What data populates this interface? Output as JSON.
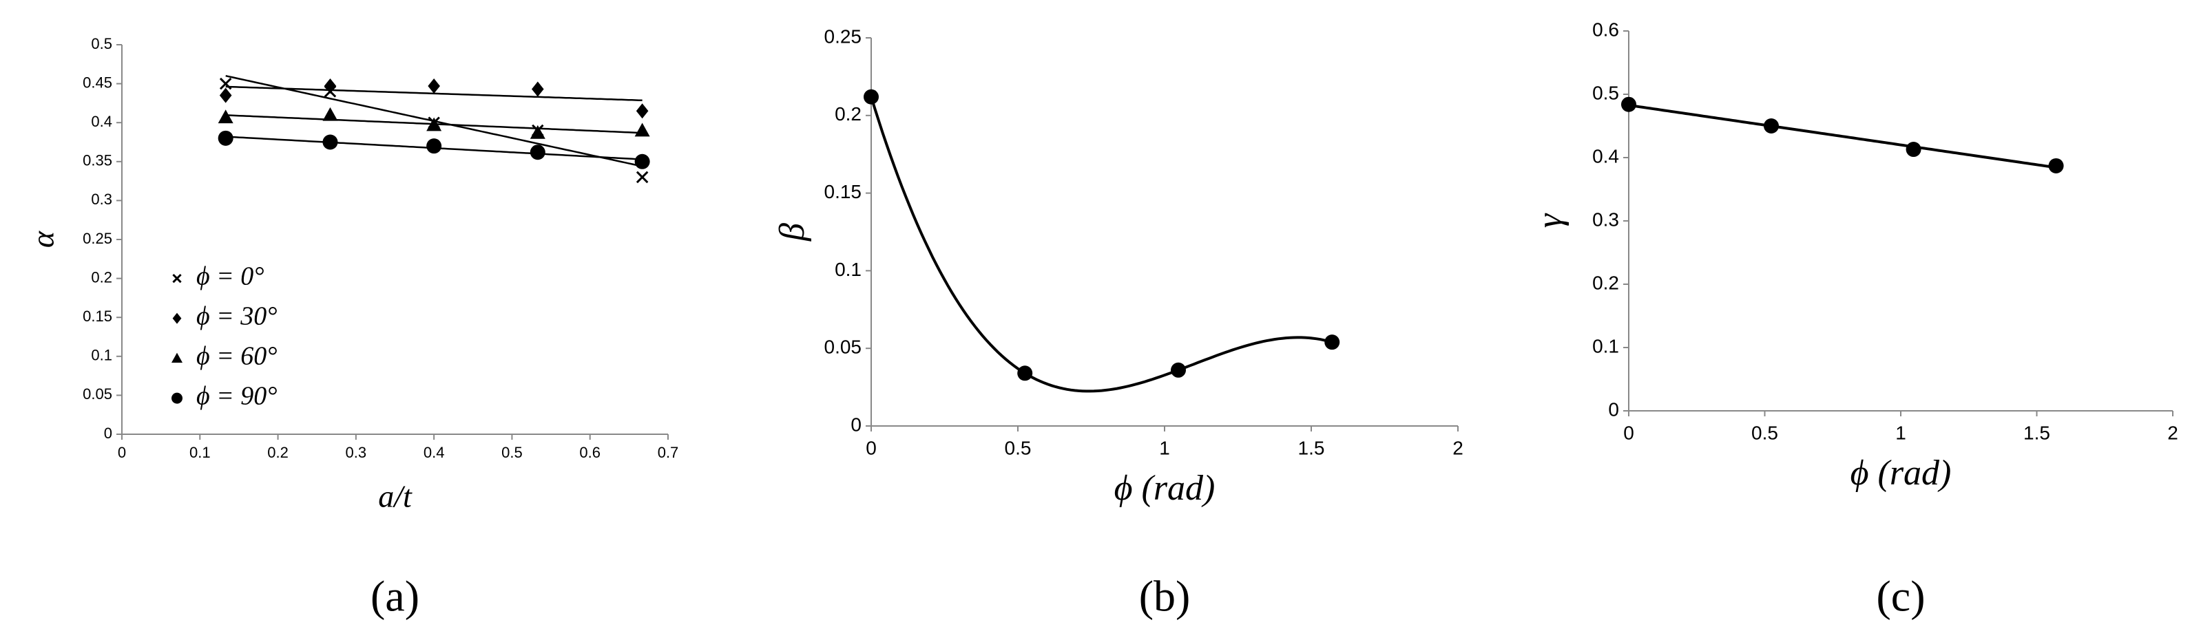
{
  "chart_data": [
    {
      "type": "scatter",
      "panel_label": "(a)",
      "x_label": "a/t",
      "y_label": "α",
      "x": [
        0.133,
        0.267,
        0.4,
        0.533,
        0.667
      ],
      "series": [
        {
          "name": "ϕ = 0°",
          "color": "#000000",
          "marker": "x",
          "values": [
            0.45,
            0.44,
            0.4,
            0.39,
            0.33
          ]
        },
        {
          "name": "ϕ = 30°",
          "color": "#000000",
          "marker": "diamond",
          "values": [
            0.435,
            0.447,
            0.447,
            0.443,
            0.415
          ]
        },
        {
          "name": "ϕ = 60°",
          "color": "#000000",
          "marker": "triangle",
          "values": [
            0.407,
            0.41,
            0.397,
            0.387,
            0.39
          ]
        },
        {
          "name": "ϕ = 90°",
          "color": "#000000",
          "marker": "circle",
          "values": [
            0.38,
            0.375,
            0.37,
            0.362,
            0.35
          ]
        }
      ],
      "trendline": "linear",
      "legend": "center left",
      "xlim": [
        0,
        0.7
      ],
      "xticks": [
        0,
        0.1,
        0.2,
        0.3,
        0.4,
        0.5,
        0.6,
        0.7
      ],
      "ylim": [
        0,
        0.5
      ],
      "yticks": [
        0,
        0.05,
        0.1,
        0.15,
        0.2,
        0.25,
        0.3,
        0.35,
        0.4,
        0.45,
        0.5
      ]
    },
    {
      "type": "scatter",
      "panel_label": "(b)",
      "x_label": "ϕ (rad)",
      "y_label": "β",
      "x": [
        0,
        0.524,
        1.047,
        1.571
      ],
      "series": [
        {
          "color": "#000000",
          "marker": "circle",
          "values": [
            0.212,
            0.034,
            0.036,
            0.054
          ]
        }
      ],
      "trendline": "polynomial",
      "xlim": [
        0,
        2
      ],
      "xticks": [
        0,
        0.5,
        1,
        1.5,
        2
      ],
      "ylim": [
        0,
        0.25
      ],
      "yticks": [
        0,
        0.05,
        0.1,
        0.15,
        0.2,
        0.25
      ]
    },
    {
      "type": "scatter",
      "panel_label": "(c)",
      "x_label": "ϕ (rad)",
      "y_label": "γ",
      "x": [
        0,
        0.524,
        1.047,
        1.571
      ],
      "series": [
        {
          "color": "#000000",
          "marker": "circle",
          "values": [
            0.484,
            0.45,
            0.413,
            0.387
          ]
        }
      ],
      "trendline": "linear",
      "xlim": [
        0,
        2
      ],
      "xticks": [
        0,
        0.5,
        1,
        1.5,
        2
      ],
      "ylim": [
        0,
        0.6
      ],
      "yticks": [
        0,
        0.1,
        0.2,
        0.3,
        0.4,
        0.5,
        0.6
      ]
    }
  ]
}
